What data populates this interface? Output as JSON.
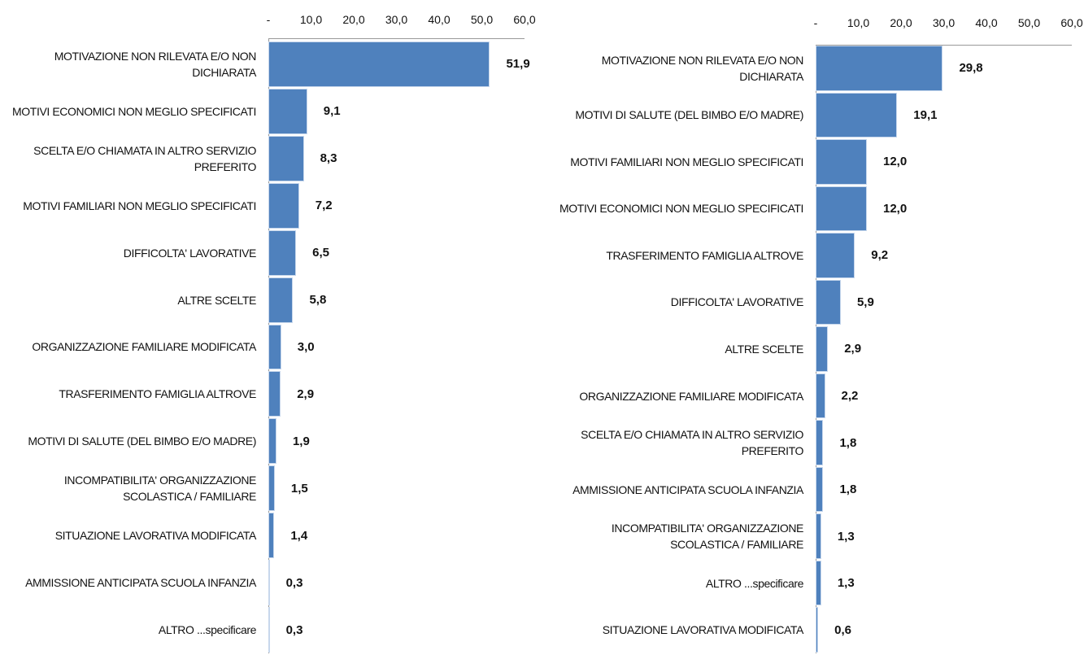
{
  "chart_data": [
    {
      "type": "bar",
      "orientation": "horizontal",
      "color": "#4f81bd",
      "categories": [
        "MOTIVAZIONE NON RILEVATA E/O NON DICHIARATA",
        "MOTIVI ECONOMICI NON MEGLIO SPECIFICATI",
        "SCELTA E/O CHIAMATA IN ALTRO SERVIZIO PREFERITO",
        "MOTIVI FAMILIARI NON MEGLIO SPECIFICATI",
        "DIFFICOLTA' LAVORATIVE",
        "ALTRE SCELTE",
        "ORGANIZZAZIONE FAMILIARE MODIFICATA",
        "TRASFERIMENTO FAMIGLIA ALTROVE",
        "MOTIVI DI SALUTE (DEL BIMBO E/O MADRE)",
        "INCOMPATIBILITA' ORGANIZZAZIONE SCOLASTICA / FAMILIARE",
        "SITUAZIONE LAVORATIVA MODIFICATA",
        "AMMISSIONE ANTICIPATA SCUOLA INFANZIA",
        "ALTRO ...specificare"
      ],
      "values": [
        51.9,
        9.1,
        8.3,
        7.2,
        6.5,
        5.8,
        3.0,
        2.9,
        1.9,
        1.5,
        1.4,
        0.3,
        0.3
      ],
      "value_labels": [
        "51,9",
        "9,1",
        "8,3",
        "7,2",
        "6,5",
        "5,8",
        "3,0",
        "2,9",
        "1,9",
        "1,5",
        "1,4",
        "0,3",
        "0,3"
      ],
      "xlim": [
        0,
        60
      ],
      "xticks": [
        {
          "value": 0,
          "label": "-"
        },
        {
          "value": 10,
          "label": "10,0"
        },
        {
          "value": 20,
          "label": "20,0"
        },
        {
          "value": 30,
          "label": "30,0"
        },
        {
          "value": 40,
          "label": "40,0"
        },
        {
          "value": 50,
          "label": "50,0"
        },
        {
          "value": 60,
          "label": "60,0"
        }
      ]
    },
    {
      "type": "bar",
      "orientation": "horizontal",
      "color": "#4f81bd",
      "categories": [
        "MOTIVAZIONE NON RILEVATA E/O NON DICHIARATA",
        "MOTIVI DI SALUTE (DEL BIMBO E/O MADRE)",
        "MOTIVI FAMILIARI NON MEGLIO SPECIFICATI",
        "MOTIVI ECONOMICI NON MEGLIO SPECIFICATI",
        "TRASFERIMENTO FAMIGLIA ALTROVE",
        "DIFFICOLTA' LAVORATIVE",
        "ALTRE SCELTE",
        "ORGANIZZAZIONE FAMILIARE MODIFICATA",
        "SCELTA E/O CHIAMATA IN ALTRO SERVIZIO PREFERITO",
        "AMMISSIONE ANTICIPATA SCUOLA INFANZIA",
        "INCOMPATIBILITA' ORGANIZZAZIONE SCOLASTICA / FAMILIARE",
        "ALTRO ...specificare",
        "SITUAZIONE LAVORATIVA MODIFICATA"
      ],
      "values": [
        29.8,
        19.1,
        12.0,
        12.0,
        9.2,
        5.9,
        2.9,
        2.2,
        1.8,
        1.8,
        1.3,
        1.3,
        0.6
      ],
      "value_labels": [
        "29,8",
        "19,1",
        "12,0",
        "12,0",
        "9,2",
        "5,9",
        "2,9",
        "2,2",
        "1,8",
        "1,8",
        "1,3",
        "1,3",
        "0,6"
      ],
      "xlim": [
        0,
        60
      ],
      "xticks": [
        {
          "value": 0,
          "label": "-"
        },
        {
          "value": 10,
          "label": "10,0"
        },
        {
          "value": 20,
          "label": "20,0"
        },
        {
          "value": 30,
          "label": "30,0"
        },
        {
          "value": 40,
          "label": "40,0"
        },
        {
          "value": 50,
          "label": "50,0"
        },
        {
          "value": 60,
          "label": "60,0"
        }
      ]
    }
  ]
}
